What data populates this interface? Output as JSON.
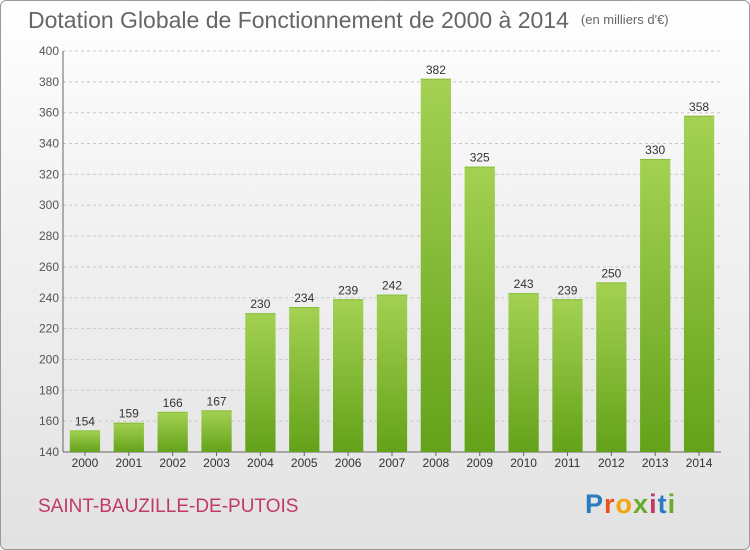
{
  "header": {
    "title": "Dotation Globale de Fonctionnement de 2000 à 2014",
    "unit": "(en milliers d'€)"
  },
  "footer": {
    "commune": "SAINT-BAUZILLE-DE-PUTOIS",
    "logo_text": "Proxiti",
    "logo_colors": [
      "#2a7bc0",
      "#e8531f",
      "#f2a60c",
      "#6aaa2a",
      "#c23a63",
      "#2a7bc0",
      "#6aaa2a"
    ]
  },
  "chart_data": {
    "type": "bar",
    "categories": [
      "2000",
      "2001",
      "2002",
      "2003",
      "2004",
      "2005",
      "2006",
      "2007",
      "2008",
      "2009",
      "2010",
      "2011",
      "2012",
      "2013",
      "2014"
    ],
    "values": [
      154,
      159,
      166,
      167,
      230,
      234,
      239,
      242,
      382,
      325,
      243,
      239,
      250,
      330,
      358
    ],
    "ylim": [
      140,
      400
    ],
    "yticks": [
      140,
      160,
      180,
      200,
      220,
      240,
      260,
      280,
      300,
      320,
      340,
      360,
      380,
      400
    ],
    "grid": true,
    "bar_color_top": "#a4d153",
    "bar_color_bottom": "#64a21a"
  }
}
